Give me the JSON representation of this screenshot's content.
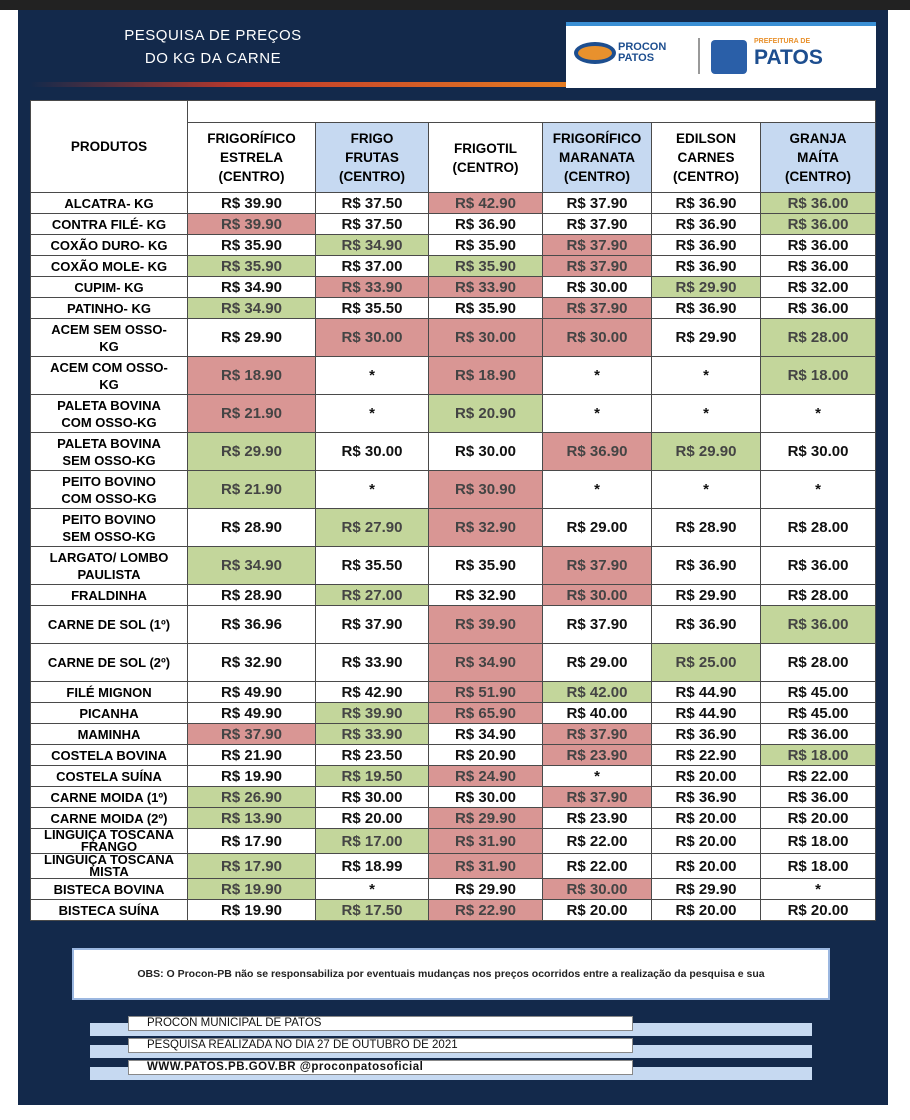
{
  "header": {
    "title": "PESQUISA DE PREÇOS\nDO KG DA CARNE",
    "logo_left": "PROCON\nPATOS",
    "logo_right_top": "PREFEITURA DE",
    "logo_right": "PATOS"
  },
  "table": {
    "product_header": "PRODUTOS",
    "columns": [
      {
        "name": "FRIGORÍFICO\nESTRELA\n(CENTRO)",
        "color": "#ffffff"
      },
      {
        "name": "FRIGO\nFRUTAS\n(CENTRO)",
        "color": "#c6d9f1"
      },
      {
        "name": "FRIGOTIL\n(CENTRO)",
        "color": "#ffffff"
      },
      {
        "name": "FRIGORÍFICO\nMARANATA\n(CENTRO)",
        "color": "#c6d9f1"
      },
      {
        "name": "EDILSON\nCARNES\n(CENTRO)",
        "color": "#ffffff"
      },
      {
        "name": "GRANJA\nMAÍTA\n(CENTRO)",
        "color": "#c6d9f1"
      }
    ],
    "rows": [
      {
        "product": "ALCATRA- KG",
        "prices": [
          "R$ 39.90",
          "R$ 37.50",
          "R$ 42.90",
          "R$ 37.90",
          "R$ 36.90",
          "R$ 36.00"
        ],
        "colors": [
          null,
          null,
          "#d99694",
          null,
          null,
          "#c3d69b"
        ]
      },
      {
        "product": "CONTRA FILÉ- KG",
        "prices": [
          "R$ 39.90",
          "R$ 37.50",
          "R$ 36.90",
          "R$ 37.90",
          "R$ 36.90",
          "R$ 36.00"
        ],
        "colors": [
          "#d99694",
          null,
          null,
          null,
          null,
          "#c3d69b"
        ]
      },
      {
        "product": "COXÃO DURO- KG",
        "prices": [
          "R$ 35.90",
          "R$ 34.90",
          "R$ 35.90",
          "R$ 37.90",
          "R$ 36.90",
          "R$ 36.00"
        ],
        "colors": [
          null,
          "#c3d69b",
          null,
          "#d99694",
          null,
          null
        ]
      },
      {
        "product": "COXÃO MOLE- KG",
        "prices": [
          "R$ 35.90",
          "R$ 37.00",
          "R$ 35.90",
          "R$ 37.90",
          "R$ 36.90",
          "R$ 36.00"
        ],
        "colors": [
          "#c3d69b",
          null,
          "#c3d69b",
          "#d99694",
          null,
          null
        ]
      },
      {
        "product": "CUPIM- KG",
        "prices": [
          "R$ 34.90",
          "R$ 33.90",
          "R$ 33.90",
          "R$ 30.00",
          "R$ 29.90",
          "R$ 32.00"
        ],
        "colors": [
          null,
          "#d99694",
          "#d99694",
          null,
          "#c3d69b",
          null
        ]
      },
      {
        "product": "PATINHO- KG",
        "prices": [
          "R$ 34.90",
          "R$ 35.50",
          "R$ 35.90",
          "R$ 37.90",
          "R$ 36.90",
          "R$ 36.00"
        ],
        "colors": [
          "#c3d69b",
          null,
          null,
          "#d99694",
          null,
          null
        ]
      },
      {
        "product": "ACEM SEM OSSO-\nKG",
        "prices": [
          "R$ 29.90",
          "R$ 30.00",
          "R$ 30.00",
          "R$ 30.00",
          "R$ 29.90",
          "R$ 28.00"
        ],
        "colors": [
          null,
          "#d99694",
          "#d99694",
          "#d99694",
          null,
          "#c3d69b"
        ]
      },
      {
        "product": "ACEM COM OSSO-\nKG",
        "prices": [
          "R$ 18.90",
          "*",
          "R$ 18.90",
          "*",
          "*",
          "R$ 18.00"
        ],
        "colors": [
          "#d99694",
          null,
          "#d99694",
          null,
          null,
          "#c3d69b"
        ]
      },
      {
        "product": "PALETA BOVINA\nCOM OSSO-KG",
        "prices": [
          "R$ 21.90",
          "*",
          "R$ 20.90",
          "*",
          "*",
          "*"
        ],
        "colors": [
          "#d99694",
          null,
          "#c3d69b",
          null,
          null,
          null
        ]
      },
      {
        "product": "PALETA BOVINA\nSEM OSSO-KG",
        "prices": [
          "R$ 29.90",
          "R$ 30.00",
          "R$ 30.00",
          "R$ 36.90",
          "R$ 29.90",
          "R$ 30.00"
        ],
        "colors": [
          "#c3d69b",
          null,
          null,
          "#d99694",
          "#c3d69b",
          null
        ]
      },
      {
        "product": "PEITO BOVINO\nCOM OSSO-KG",
        "prices": [
          "R$ 21.90",
          "*",
          "R$ 30.90",
          "*",
          "*",
          "*"
        ],
        "colors": [
          "#c3d69b",
          null,
          "#d99694",
          null,
          null,
          null
        ]
      },
      {
        "product": "PEITO BOVINO\nSEM OSSO-KG",
        "prices": [
          "R$ 28.90",
          "R$ 27.90",
          "R$ 32.90",
          "R$ 29.00",
          "R$ 28.90",
          "R$ 28.00"
        ],
        "colors": [
          null,
          "#c3d69b",
          "#d99694",
          null,
          null,
          null
        ]
      },
      {
        "product": "LARGATO/ LOMBO\nPAULISTA",
        "prices": [
          "R$ 34.90",
          "R$ 35.50",
          "R$ 35.90",
          "R$ 37.90",
          "R$ 36.90",
          "R$ 36.00"
        ],
        "colors": [
          "#c3d69b",
          null,
          null,
          "#d99694",
          null,
          null
        ]
      },
      {
        "product": "FRALDINHA",
        "prices": [
          "R$ 28.90",
          "R$ 27.00",
          "R$ 32.90",
          "R$ 30.00",
          "R$ 29.90",
          "R$ 28.00"
        ],
        "colors": [
          null,
          "#c3d69b",
          null,
          "#d99694",
          null,
          null
        ]
      },
      {
        "product": "CARNE DE SOL (1º)",
        "prices": [
          "R$ 36.96",
          "R$ 37.90",
          "R$ 39.90",
          "R$ 37.90",
          "R$ 36.90",
          "R$ 36.00"
        ],
        "colors": [
          null,
          null,
          "#d99694",
          null,
          null,
          "#c3d69b"
        ]
      },
      {
        "product": "CARNE DE SOL (2º)",
        "prices": [
          "R$ 32.90",
          "R$ 33.90",
          "R$ 34.90",
          "R$ 29.00",
          "R$ 25.00",
          "R$ 28.00"
        ],
        "colors": [
          null,
          null,
          "#d99694",
          null,
          "#c3d69b",
          null
        ]
      },
      {
        "product": "FILÉ MIGNON",
        "prices": [
          "R$ 49.90",
          "R$ 42.90",
          "R$ 51.90",
          "R$ 42.00",
          "R$ 44.90",
          "R$ 45.00"
        ],
        "colors": [
          null,
          null,
          "#d99694",
          "#c3d69b",
          null,
          null
        ]
      },
      {
        "product": "PICANHA",
        "prices": [
          "R$ 49.90",
          "R$ 39.90",
          "R$ 65.90",
          "R$ 40.00",
          "R$ 44.90",
          "R$ 45.00"
        ],
        "colors": [
          null,
          "#c3d69b",
          "#d99694",
          null,
          null,
          null
        ]
      },
      {
        "product": "MAMINHA",
        "prices": [
          "R$ 37.90",
          "R$ 33.90",
          "R$ 34.90",
          "R$ 37.90",
          "R$ 36.90",
          "R$ 36.00"
        ],
        "colors": [
          "#d99694",
          "#c3d69b",
          null,
          "#d99694",
          null,
          null
        ]
      },
      {
        "product": "COSTELA BOVINA",
        "prices": [
          "R$ 21.90",
          "R$ 23.50",
          "R$ 20.90",
          "R$ 23.90",
          "R$ 22.90",
          "R$ 18.00"
        ],
        "colors": [
          null,
          null,
          null,
          "#d99694",
          null,
          "#c3d69b"
        ]
      },
      {
        "product": "COSTELA SUÍNA",
        "prices": [
          "R$ 19.90",
          "R$ 19.50",
          "R$ 24.90",
          "*",
          "R$ 20.00",
          "R$ 22.00"
        ],
        "colors": [
          null,
          "#c3d69b",
          "#d99694",
          null,
          null,
          null
        ]
      },
      {
        "product": "CARNE MOIDA (1º)",
        "prices": [
          "R$ 26.90",
          "R$ 30.00",
          "R$ 30.00",
          "R$ 37.90",
          "R$ 36.90",
          "R$ 36.00"
        ],
        "colors": [
          "#c3d69b",
          null,
          null,
          "#d99694",
          null,
          null
        ]
      },
      {
        "product": "CARNE MOIDA (2º)",
        "prices": [
          "R$ 13.90",
          "R$ 20.00",
          "R$ 29.90",
          "R$ 23.90",
          "R$ 20.00",
          "R$ 20.00"
        ],
        "colors": [
          "#c3d69b",
          null,
          "#d99694",
          null,
          null,
          null
        ]
      },
      {
        "product": "LINGUIÇA TOSCANA\nFRANGO",
        "prices": [
          "R$ 17.90",
          "R$ 17.00",
          "R$ 31.90",
          "R$ 22.00",
          "R$ 20.00",
          "R$ 18.00"
        ],
        "colors": [
          null,
          "#c3d69b",
          "#d99694",
          null,
          null,
          null
        ]
      },
      {
        "product": "LINGUIÇA TOSCANA\nMISTA",
        "prices": [
          "R$ 17.90",
          "R$ 18.99",
          "R$ 31.90",
          "R$ 22.00",
          "R$ 20.00",
          "R$ 18.00"
        ],
        "colors": [
          "#c3d69b",
          null,
          "#d99694",
          null,
          null,
          null
        ]
      },
      {
        "product": "BISTECA BOVINA",
        "prices": [
          "R$ 19.90",
          "*",
          "R$ 29.90",
          "R$ 30.00",
          "R$ 29.90",
          "*"
        ],
        "colors": [
          "#c3d69b",
          null,
          null,
          "#d99694",
          null,
          null
        ]
      },
      {
        "product": "BISTECA SUÍNA",
        "prices": [
          "R$ 19.90",
          "R$ 17.50",
          "R$ 22.90",
          "R$ 20.00",
          "R$ 20.00",
          "R$ 20.00"
        ],
        "colors": [
          null,
          "#c3d69b",
          "#d99694",
          null,
          null,
          null
        ]
      }
    ]
  },
  "footer": {
    "note": "OBS: O Procon-PB não se responsabiliza por eventuais mudanças nos preços ocorridos entre a realização da pesquisa e sua",
    "lines": [
      "PROCON MUNICIPAL DE PATOS",
      "PESQUISA REALIZADA NO DIA 27 DE OUTUBRO DE 2021",
      "WWW.PATOS.PB.GOV.BR @proconpatosoficial"
    ]
  }
}
